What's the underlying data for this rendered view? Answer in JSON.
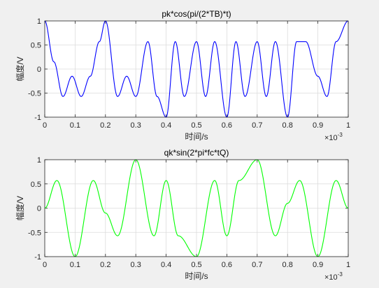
{
  "chart_data": [
    {
      "type": "line",
      "title": "pk*cos(pi/(2*TB)*t)",
      "xlabel": "时间/s",
      "ylabel": "幅度/V",
      "x_multiplier": {
        "base": "×10",
        "exp": "-3"
      },
      "xlim": [
        0,
        0.001
      ],
      "ylim": [
        -1,
        1
      ],
      "xticks": [
        "0",
        "0.1",
        "0.2",
        "0.3",
        "0.4",
        "0.5",
        "0.6",
        "0.7",
        "0.8",
        "0.9",
        "1"
      ],
      "yticks": [
        "-1",
        "-0.5",
        "0",
        "0.5",
        "1"
      ],
      "grid": true,
      "series": [
        {
          "color": "#0000ff",
          "symbols": [
            1,
            -1,
            -1,
            1,
            -1,
            -1,
            1,
            -1,
            -1,
            -1,
            -1,
            1,
            -1,
            -1,
            1,
            -1,
            -1,
            -1,
            -1,
            1,
            -1,
            -1,
            1,
            -1,
            -1,
            1,
            -1,
            1,
            -1,
            -1,
            1,
            -1,
            -1,
            1
          ],
          "symbol_rate": 33000,
          "levels": [
            0.57,
            1.0
          ],
          "fn": "cos",
          "period": 0.0002,
          "x": [
            0,
            3e-05,
            6e-05,
            9e-05,
            0.00012,
            0.00015,
            0.00018,
            0.0002,
            0.00024,
            0.00027,
            0.0003,
            0.00034,
            0.00037,
            0.0004,
            0.00043,
            0.00046,
            0.0005,
            0.00053,
            0.00056,
            0.0006,
            0.00063,
            0.00066,
            0.0007,
            0.00073,
            0.00076,
            0.0008,
            0.00083,
            0.00086,
            0.0009,
            0.00093,
            0.00096,
            0.001
          ],
          "y": [
            1,
            0.15,
            -0.57,
            -0.15,
            -0.57,
            -0.15,
            0.57,
            1,
            -0.57,
            -0.15,
            -0.57,
            0.57,
            -0.57,
            -1,
            0.57,
            -0.57,
            0.57,
            -0.57,
            0.57,
            -1,
            0.57,
            -0.57,
            0.57,
            -0.57,
            0.57,
            -1,
            0.57,
            0.57,
            -0.15,
            -0.57,
            0.57,
            1
          ]
        }
      ]
    },
    {
      "type": "line",
      "title": "qk*sin(2*pi*fc*tQ)",
      "xlabel": "时间/s",
      "ylabel": "幅度/V",
      "x_multiplier": {
        "base": "×10",
        "exp": "-3"
      },
      "xlim": [
        0,
        0.001
      ],
      "ylim": [
        -1,
        1
      ],
      "xticks": [
        "0",
        "0.1",
        "0.2",
        "0.3",
        "0.4",
        "0.5",
        "0.6",
        "0.7",
        "0.8",
        "0.9",
        "1"
      ],
      "yticks": [
        "-1",
        "-0.5",
        "0",
        "0.5",
        "1"
      ],
      "grid": true,
      "series": [
        {
          "color": "#00ff00",
          "period": 0.00012,
          "x": [
            0,
            4e-05,
            0.0001,
            0.00016,
            0.0002,
            0.00024,
            0.0003,
            0.00036,
            0.0004,
            0.00044,
            0.0005,
            0.00056,
            0.0006,
            0.00064,
            0.0007,
            0.00076,
            0.0008,
            0.00084,
            0.0009,
            0.00096,
            0.001
          ],
          "y": [
            0,
            0.57,
            -1,
            0.57,
            -0.1,
            -0.57,
            1,
            -0.57,
            0.57,
            -0.57,
            -1,
            0.57,
            -0.57,
            0.57,
            1,
            -0.57,
            0.1,
            0.57,
            -1,
            0.57,
            0
          ]
        }
      ]
    }
  ]
}
